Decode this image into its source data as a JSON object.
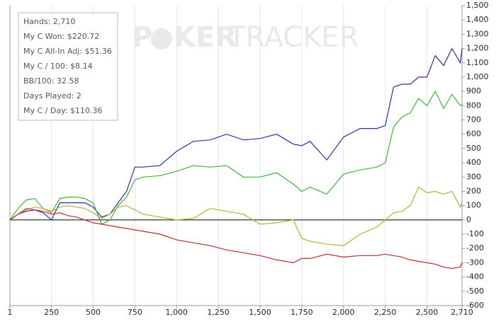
{
  "chart_data": {
    "type": "line",
    "info_lines": [
      "Hands: 2,710",
      "My C Won: $220.72",
      "My C All-In Adj: $51.36",
      "My C / 100: $8.14",
      "BB/100: 32.58",
      "Days Played: 2",
      "My C / Day: $110.36"
    ],
    "watermark": [
      "P",
      "KER",
      "TRACKER"
    ],
    "x": [
      1,
      50,
      100,
      150,
      200,
      250,
      300,
      350,
      400,
      450,
      500,
      550,
      600,
      650,
      700,
      750,
      800,
      900,
      1000,
      1100,
      1200,
      1300,
      1400,
      1500,
      1600,
      1700,
      1750,
      1800,
      1900,
      2000,
      2100,
      2200,
      2250,
      2300,
      2350,
      2400,
      2450,
      2500,
      2550,
      2600,
      2650,
      2700,
      2710
    ],
    "series": [
      {
        "color": "#2b2bb0",
        "values": [
          0,
          40,
          60,
          70,
          50,
          0,
          120,
          120,
          120,
          120,
          90,
          20,
          40,
          120,
          200,
          370,
          370,
          380,
          480,
          550,
          560,
          600,
          560,
          570,
          600,
          530,
          520,
          550,
          420,
          580,
          640,
          640,
          660,
          930,
          950,
          950,
          1000,
          1000,
          1150,
          1080,
          1200,
          1100,
          1200
        ]
      },
      {
        "color": "#3cb43c",
        "values": [
          0,
          80,
          140,
          150,
          80,
          50,
          150,
          160,
          160,
          150,
          120,
          -30,
          0,
          100,
          160,
          280,
          300,
          310,
          340,
          380,
          370,
          380,
          300,
          300,
          330,
          250,
          200,
          230,
          180,
          320,
          350,
          370,
          400,
          650,
          720,
          750,
          850,
          800,
          900,
          780,
          880,
          800,
          810
        ]
      },
      {
        "color": "#b4b428",
        "values": [
          0,
          40,
          70,
          90,
          80,
          60,
          90,
          100,
          90,
          80,
          50,
          10,
          40,
          90,
          100,
          70,
          40,
          20,
          0,
          10,
          80,
          60,
          40,
          -30,
          -20,
          0,
          -130,
          -150,
          -170,
          -180,
          -100,
          -50,
          0,
          50,
          60,
          100,
          230,
          190,
          200,
          180,
          200,
          90,
          120
        ]
      },
      {
        "color": "#c02a2a",
        "values": [
          0,
          40,
          80,
          70,
          60,
          40,
          50,
          30,
          20,
          0,
          -20,
          -30,
          -40,
          -50,
          -60,
          -70,
          -80,
          -100,
          -140,
          -160,
          -180,
          -210,
          -230,
          -250,
          -280,
          -300,
          -270,
          -270,
          -240,
          -260,
          -250,
          -250,
          -240,
          -250,
          -260,
          -280,
          -290,
          -300,
          -310,
          -330,
          -340,
          -330,
          -300
        ]
      }
    ],
    "xlim": [
      1,
      2710
    ],
    "xticks": [
      1,
      250,
      500,
      750,
      {
        "value": 1000,
        "label": "1,000"
      },
      {
        "value": 1250,
        "label": "1,250"
      },
      {
        "value": 1500,
        "label": "1,500"
      },
      {
        "value": 1750,
        "label": "1,750"
      },
      {
        "value": 2000,
        "label": "2,000"
      },
      {
        "value": 2250,
        "label": "2,250"
      },
      {
        "value": 2500,
        "label": "2,500"
      },
      {
        "value": 2710,
        "label": "2,710"
      }
    ],
    "ylim": [
      -600,
      1500
    ],
    "yticks": [
      {
        "value": 1500,
        "label": "1,500"
      },
      {
        "value": 1400,
        "label": "1,400"
      },
      {
        "value": 1300,
        "label": "1,300"
      },
      {
        "value": 1200,
        "label": "1,200"
      },
      {
        "value": 1100,
        "label": "1,100"
      },
      {
        "value": 1000,
        "label": "1,000"
      },
      900,
      800,
      700,
      600,
      500,
      400,
      300,
      200,
      100,
      0,
      -100,
      -200,
      -300,
      -400,
      -500,
      -600
    ],
    "grid": true
  }
}
